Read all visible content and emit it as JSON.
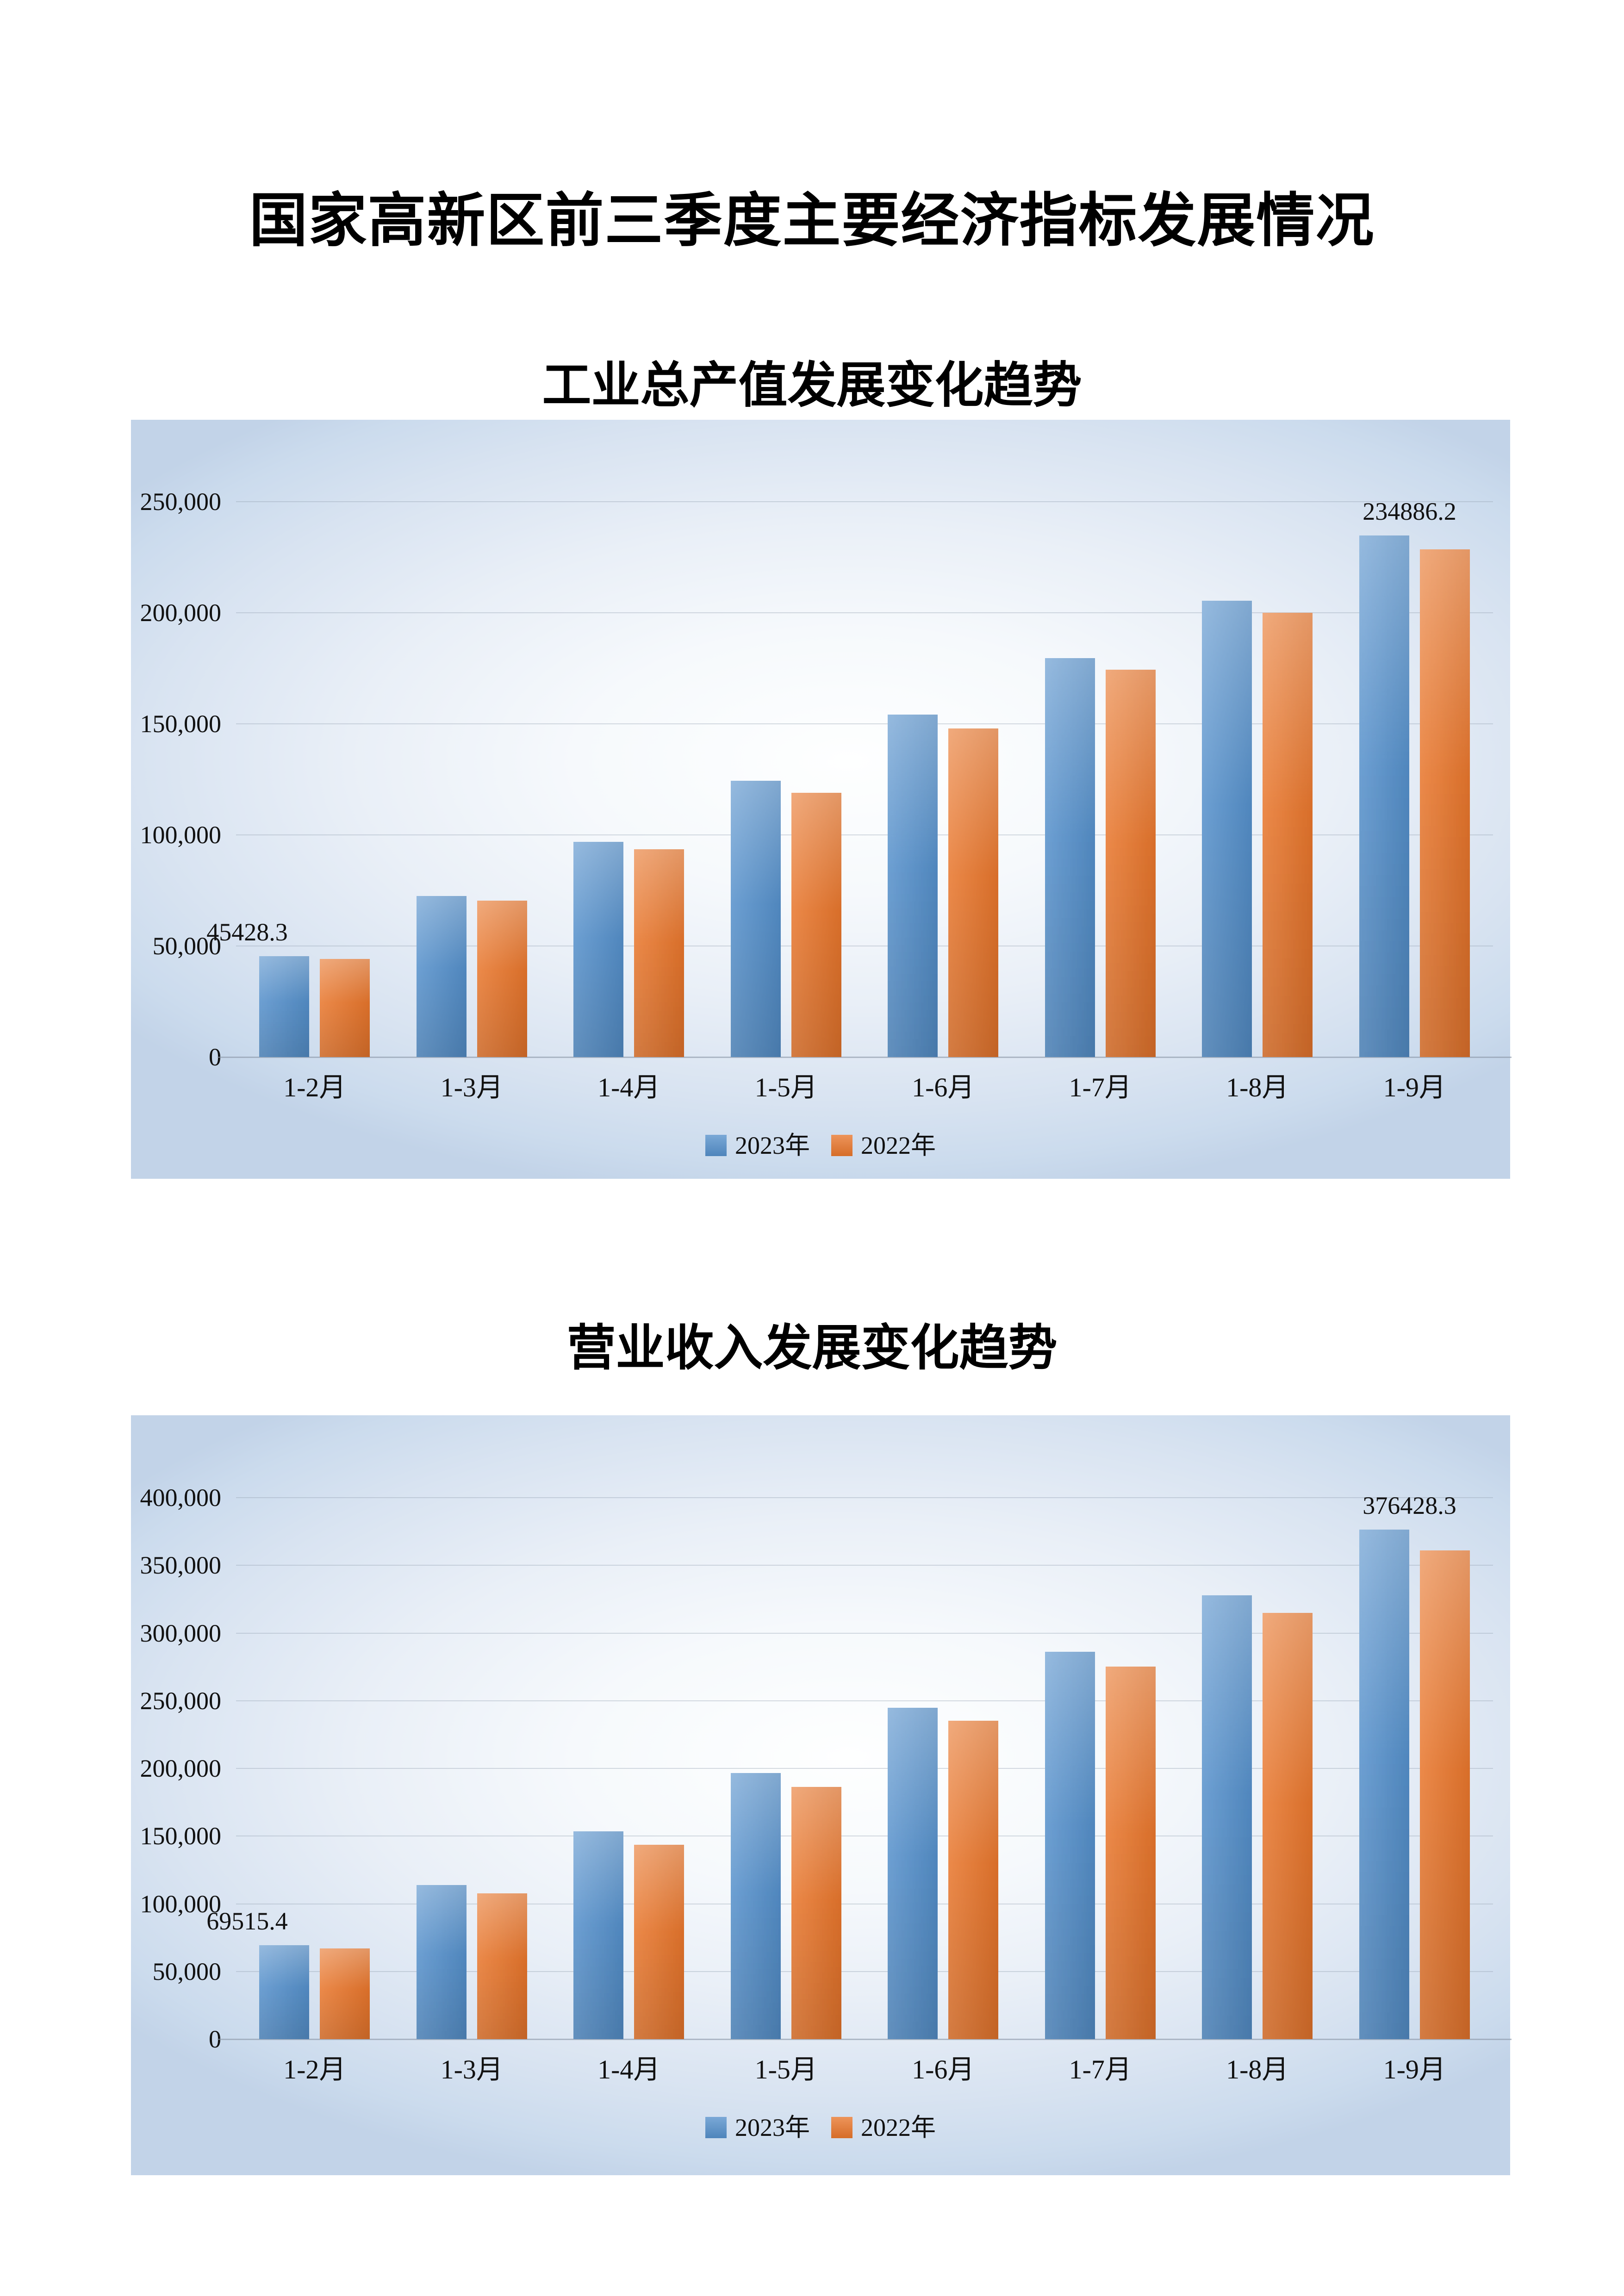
{
  "page": {
    "main_title": "国家高新区前三季度主要经济指标发展情况"
  },
  "chart_data": [
    {
      "type": "bar",
      "title": "工业总产值发展变化趋势",
      "categories": [
        "1-2月",
        "1-3月",
        "1-4月",
        "1-5月",
        "1-6月",
        "1-7月",
        "1-8月",
        "1-9月"
      ],
      "series": [
        {
          "name": "2023年",
          "color": "#5590CB",
          "values": [
            45428.3,
            72400,
            96800,
            124300,
            154200,
            179600,
            205400,
            234886.2
          ]
        },
        {
          "name": "2022年",
          "color": "#E8762C",
          "values": [
            44100,
            70400,
            93600,
            118900,
            147900,
            174400,
            200100,
            228600
          ]
        }
      ],
      "ylim": [
        0,
        250000
      ],
      "ystep": 50000,
      "grid": true,
      "legend_position": "bottom",
      "annotations": [
        {
          "series": 0,
          "index": 0,
          "text": "45428.3"
        },
        {
          "series": 0,
          "index": 7,
          "text": "234886.2"
        }
      ]
    },
    {
      "type": "bar",
      "title": "营业收入发展变化趋势",
      "categories": [
        "1-2月",
        "1-3月",
        "1-4月",
        "1-5月",
        "1-6月",
        "1-7月",
        "1-8月",
        "1-9月"
      ],
      "series": [
        {
          "name": "2023年",
          "color": "#5590CB",
          "values": [
            69515.4,
            113900,
            153600,
            196700,
            244900,
            286200,
            327900,
            376428.3
          ]
        },
        {
          "name": "2022年",
          "color": "#E8762C",
          "values": [
            66900,
            107800,
            143600,
            186400,
            235100,
            275300,
            314800,
            360900
          ]
        }
      ],
      "ylim": [
        0,
        400000
      ],
      "ystep": 50000,
      "grid": true,
      "legend_position": "bottom",
      "annotations": [
        {
          "series": 0,
          "index": 0,
          "text": "69515.4"
        },
        {
          "series": 0,
          "index": 7,
          "text": "376428.3"
        }
      ]
    }
  ]
}
